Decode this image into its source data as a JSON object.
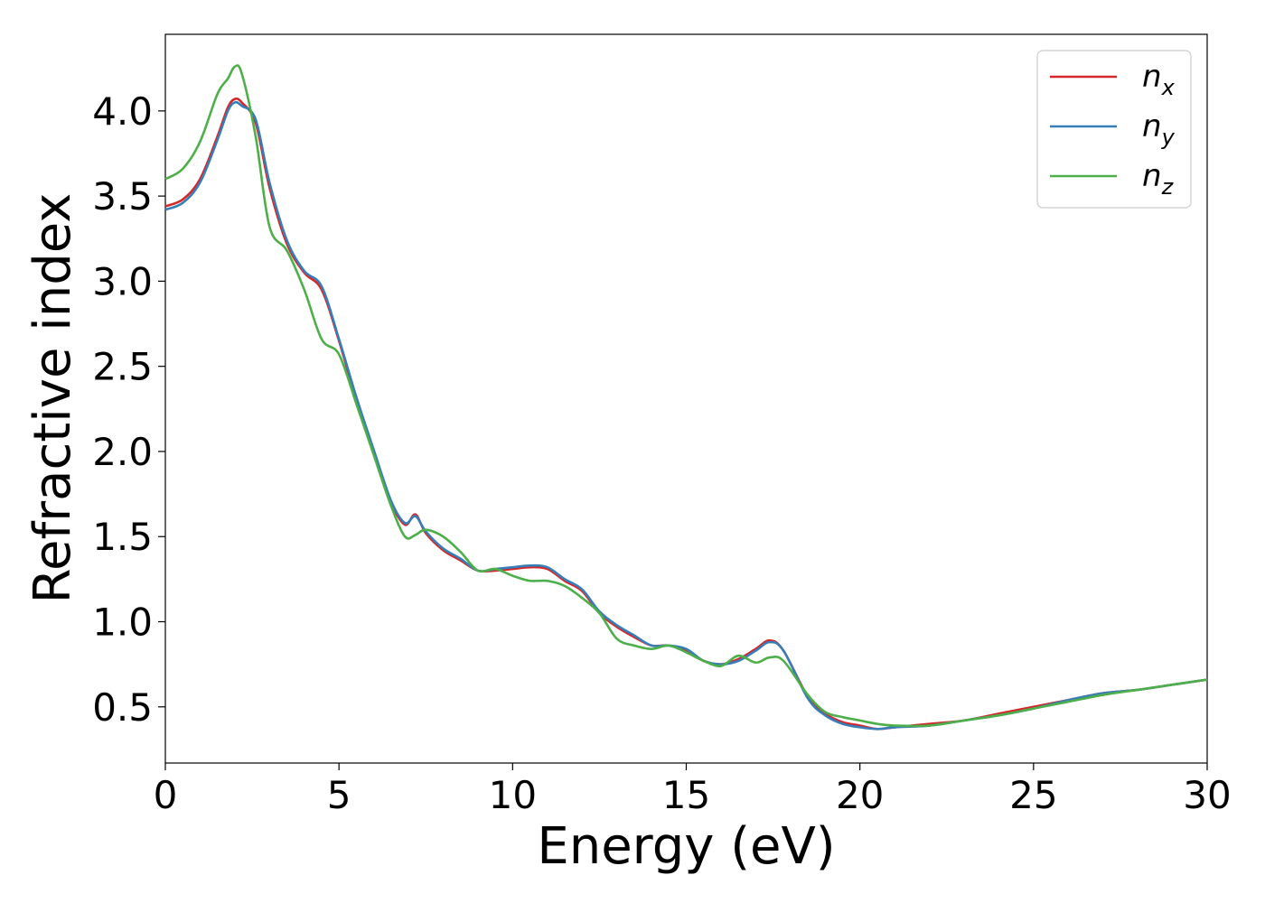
{
  "chart_data": {
    "type": "line",
    "xlabel": "Energy (eV)",
    "ylabel": "Refractive index",
    "xlim": [
      0,
      30
    ],
    "ylim": [
      0.17,
      4.45
    ],
    "xticks": [
      "0",
      "5",
      "10",
      "15",
      "20",
      "25",
      "30"
    ],
    "yticks": [
      "0.5",
      "1.0",
      "1.5",
      "2.0",
      "2.5",
      "3.0",
      "3.5",
      "4.0"
    ],
    "grid": false,
    "legend_position": "top-right",
    "series": [
      {
        "name": "n",
        "subscript": "x",
        "color": "#d62728",
        "x": [
          0,
          0.5,
          1.0,
          1.5,
          1.8,
          2.0,
          2.2,
          2.6,
          3.0,
          3.5,
          4.0,
          4.5,
          5.0,
          5.5,
          6.0,
          6.5,
          6.9,
          7.2,
          7.5,
          8.0,
          8.5,
          9.0,
          9.5,
          10.0,
          10.5,
          11.0,
          11.5,
          12.0,
          12.5,
          13.0,
          13.5,
          14.0,
          14.5,
          15.0,
          15.5,
          16.0,
          16.5,
          17.0,
          17.4,
          17.8,
          18.5,
          19.0,
          19.5,
          20.0,
          20.5,
          21.0,
          22.0,
          23.0,
          24.0,
          25.0,
          26.0,
          27.0,
          28.0,
          29.0,
          30.0
        ],
        "y": [
          3.44,
          3.48,
          3.6,
          3.85,
          4.02,
          4.07,
          4.05,
          3.93,
          3.55,
          3.22,
          3.05,
          2.95,
          2.65,
          2.3,
          2.0,
          1.7,
          1.57,
          1.63,
          1.52,
          1.42,
          1.36,
          1.3,
          1.3,
          1.31,
          1.32,
          1.31,
          1.24,
          1.18,
          1.05,
          0.97,
          0.91,
          0.86,
          0.86,
          0.83,
          0.77,
          0.75,
          0.78,
          0.84,
          0.89,
          0.83,
          0.56,
          0.46,
          0.41,
          0.39,
          0.37,
          0.38,
          0.4,
          0.42,
          0.46,
          0.5,
          0.54,
          0.58,
          0.6,
          0.63,
          0.66
        ]
      },
      {
        "name": "n",
        "subscript": "y",
        "color": "#377eb8",
        "x": [
          0,
          0.5,
          1.0,
          1.5,
          1.8,
          2.0,
          2.2,
          2.6,
          3.0,
          3.5,
          4.0,
          4.5,
          5.0,
          5.5,
          6.0,
          6.5,
          6.9,
          7.2,
          7.5,
          8.0,
          8.5,
          9.0,
          9.5,
          10.0,
          10.5,
          11.0,
          11.5,
          12.0,
          12.5,
          13.0,
          13.5,
          14.0,
          14.5,
          15.0,
          15.5,
          16.0,
          16.5,
          17.0,
          17.4,
          17.8,
          18.5,
          19.0,
          19.5,
          20.0,
          20.5,
          21.0,
          22.0,
          23.0,
          24.0,
          25.0,
          26.0,
          27.0,
          28.0,
          29.0,
          30.0
        ],
        "y": [
          3.42,
          3.46,
          3.58,
          3.83,
          4.0,
          4.05,
          4.03,
          3.95,
          3.58,
          3.24,
          3.06,
          2.97,
          2.66,
          2.32,
          2.01,
          1.71,
          1.58,
          1.62,
          1.53,
          1.43,
          1.37,
          1.3,
          1.31,
          1.32,
          1.33,
          1.32,
          1.25,
          1.19,
          1.06,
          0.98,
          0.92,
          0.86,
          0.86,
          0.84,
          0.77,
          0.75,
          0.77,
          0.83,
          0.88,
          0.83,
          0.55,
          0.45,
          0.4,
          0.38,
          0.37,
          0.38,
          0.39,
          0.42,
          0.45,
          0.49,
          0.54,
          0.58,
          0.6,
          0.63,
          0.66
        ]
      },
      {
        "name": "n",
        "subscript": "z",
        "color": "#4daf4a",
        "x": [
          0,
          0.5,
          1.0,
          1.5,
          1.8,
          2.0,
          2.2,
          2.6,
          3.0,
          3.5,
          4.0,
          4.5,
          5.0,
          5.5,
          6.0,
          6.5,
          6.9,
          7.2,
          7.5,
          8.0,
          8.5,
          9.0,
          9.5,
          10.0,
          10.5,
          11.0,
          11.5,
          12.0,
          12.5,
          13.0,
          13.5,
          14.0,
          14.5,
          15.0,
          15.5,
          16.0,
          16.5,
          17.0,
          17.4,
          17.8,
          18.5,
          19.0,
          19.5,
          20.0,
          20.5,
          21.0,
          22.0,
          23.0,
          24.0,
          25.0,
          26.0,
          27.0,
          28.0,
          29.0,
          30.0
        ],
        "y": [
          3.6,
          3.66,
          3.82,
          4.1,
          4.19,
          4.26,
          4.22,
          3.85,
          3.32,
          3.18,
          2.95,
          2.66,
          2.57,
          2.28,
          1.98,
          1.68,
          1.5,
          1.51,
          1.54,
          1.5,
          1.41,
          1.3,
          1.31,
          1.27,
          1.24,
          1.24,
          1.21,
          1.14,
          1.05,
          0.9,
          0.86,
          0.84,
          0.86,
          0.82,
          0.77,
          0.74,
          0.8,
          0.76,
          0.79,
          0.77,
          0.57,
          0.47,
          0.44,
          0.42,
          0.4,
          0.39,
          0.39,
          0.42,
          0.45,
          0.49,
          0.53,
          0.57,
          0.6,
          0.63,
          0.66
        ]
      }
    ]
  }
}
